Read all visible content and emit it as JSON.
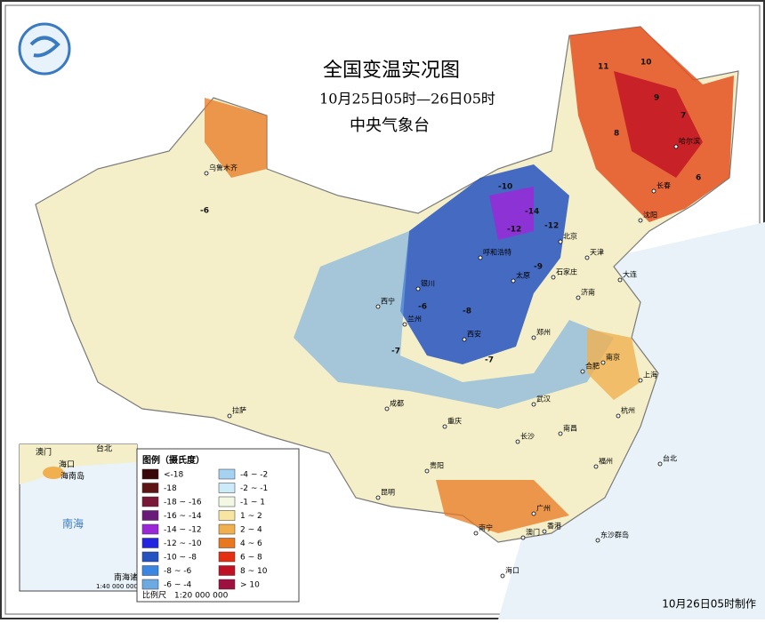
{
  "header": {
    "title": "全国变温实况图",
    "subtitle": "10月25日05时—26日05时",
    "agency": "中央气象台"
  },
  "legend": {
    "title": "图例（摄氏度）",
    "items": [
      {
        "label": "<-18",
        "color": "#3a0808"
      },
      {
        "label": "-18",
        "color": "#5c1414"
      },
      {
        "label": "-18 ~ -16",
        "color": "#7a1838"
      },
      {
        "label": "-16 ~ -14",
        "color": "#6a1a7a"
      },
      {
        "label": "-14 ~ -12",
        "color": "#9a28d8"
      },
      {
        "label": "-12 ~ -10",
        "color": "#2424e0"
      },
      {
        "label": "-10 ~ -8",
        "color": "#2452c0"
      },
      {
        "label": "-8 ~ -6",
        "color": "#3a86e2"
      },
      {
        "label": "-6 ~ -4",
        "color": "#6eaae2"
      },
      {
        "label": "-4 ~ -2",
        "color": "#a6d2f2"
      },
      {
        "label": "-2 ~ -1",
        "color": "#cdeaf8"
      },
      {
        "label": "-1 ~ 1",
        "color": "#f2f8e2"
      },
      {
        "label": "1 ~ 2",
        "color": "#f8e6a0"
      },
      {
        "label": "2 ~ 4",
        "color": "#f0b050"
      },
      {
        "label": "4 ~ 6",
        "color": "#e87820"
      },
      {
        "label": "6 ~ 8",
        "color": "#e43012"
      },
      {
        "label": "8 ~ 10",
        "color": "#c01024"
      },
      {
        "label": "> 10",
        "color": "#9e1040"
      }
    ]
  },
  "scale": "比例尺　1:20 000 000",
  "footer": "10月26日05时制作",
  "inset": {
    "labels": [
      "澳门",
      "台北",
      "海口",
      "海南岛",
      "南海",
      "南海诸岛"
    ],
    "scale": "1:40 000 000"
  },
  "places": [
    "乌鲁木齐",
    "拉萨",
    "西宁",
    "兰州",
    "银川",
    "呼和浩特",
    "北京",
    "天津",
    "石家庄",
    "太原",
    "济南",
    "郑州",
    "西安",
    "成都",
    "重庆",
    "武汉",
    "长沙",
    "南昌",
    "杭州",
    "上海",
    "合肥",
    "南京",
    "福州",
    "台北",
    "广州",
    "南宁",
    "海口",
    "昆明",
    "贵阳",
    "沈阳",
    "长春",
    "哈尔滨",
    "大连",
    "香港",
    "澳门",
    "东沙群岛"
  ],
  "map_labels": [
    "-14",
    "-12",
    "-12",
    "-10",
    "-9",
    "-8",
    "-7",
    "-6",
    "10",
    "9",
    "11",
    "8",
    "7",
    "6",
    "-6",
    "-7"
  ]
}
